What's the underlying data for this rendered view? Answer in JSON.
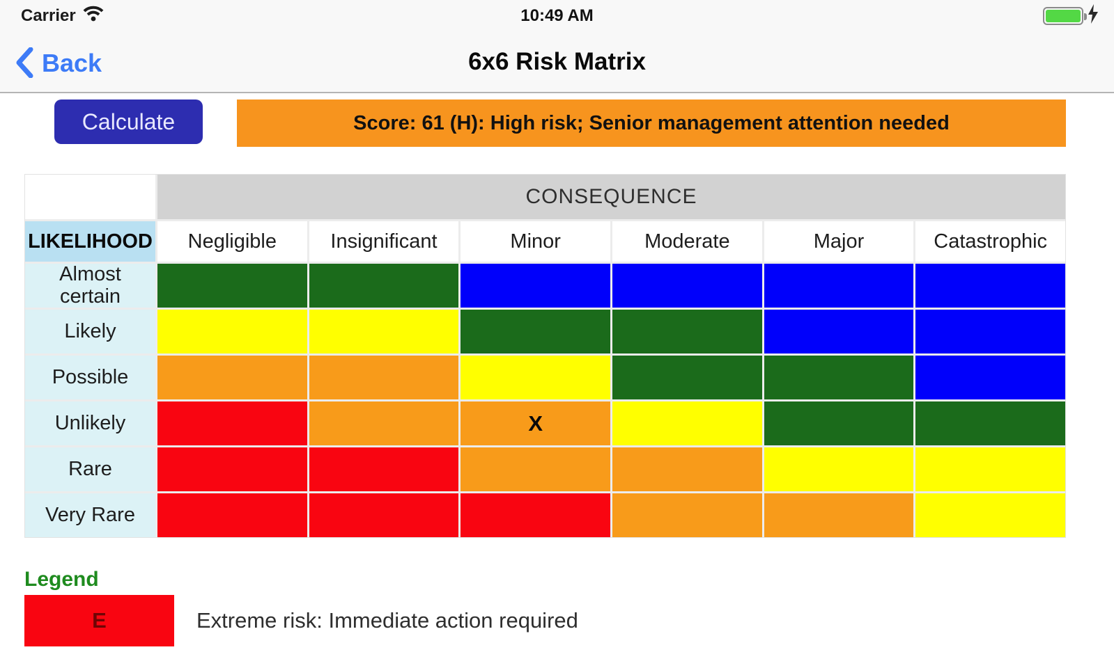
{
  "status_bar": {
    "carrier": "Carrier",
    "time": "10:49 AM",
    "battery_color": "#53d845",
    "charging": true
  },
  "nav": {
    "back_label": "Back",
    "title": "6x6 Risk Matrix",
    "accent_color": "#3d7bf7"
  },
  "toolbar": {
    "calculate_label": "Calculate",
    "calculate_bg": "#2d2db0",
    "score_text": "Score: 61 (H): High risk; Senior management attention needed",
    "score_bg": "#f7941e"
  },
  "matrix": {
    "consequence_header": "CONSEQUENCE",
    "likelihood_header": "LIKELIHOOD",
    "consequence_labels": [
      "Negligible",
      "Insignificant",
      "Minor",
      "Moderate",
      "Major",
      "Catastrophic"
    ],
    "likelihood_labels": [
      "Almost certain",
      "Likely",
      "Possible",
      "Unlikely",
      "Rare",
      "Very Rare"
    ],
    "marker": {
      "row": "Unlikely",
      "col": "Minor",
      "symbol": "X"
    },
    "rows": [
      {
        "label": "Almost certain",
        "cells": [
          "green",
          "green",
          "blue",
          "blue",
          "blue",
          "blue"
        ]
      },
      {
        "label": "Likely",
        "cells": [
          "yellow",
          "yellow",
          "green",
          "green",
          "blue",
          "blue"
        ]
      },
      {
        "label": "Possible",
        "cells": [
          "orange",
          "orange",
          "yellow",
          "green",
          "green",
          "blue"
        ]
      },
      {
        "label": "Unlikely",
        "cells": [
          "red",
          "orange",
          "orange",
          "yellow",
          "green",
          "green"
        ]
      },
      {
        "label": "Rare",
        "cells": [
          "red",
          "red",
          "orange",
          "orange",
          "yellow",
          "yellow"
        ]
      },
      {
        "label": "Very Rare",
        "cells": [
          "red",
          "red",
          "red",
          "orange",
          "orange",
          "yellow"
        ]
      }
    ],
    "cell_colors": {
      "green": "#1b6b1b",
      "blue": "#0000fb",
      "yellow": "#ffff00",
      "orange": "#f89b1a",
      "red": "#f90511"
    }
  },
  "legend": {
    "title": "Legend",
    "items": [
      {
        "code": "E",
        "color": "#f90511",
        "text": "Extreme risk: Immediate action required"
      }
    ]
  }
}
